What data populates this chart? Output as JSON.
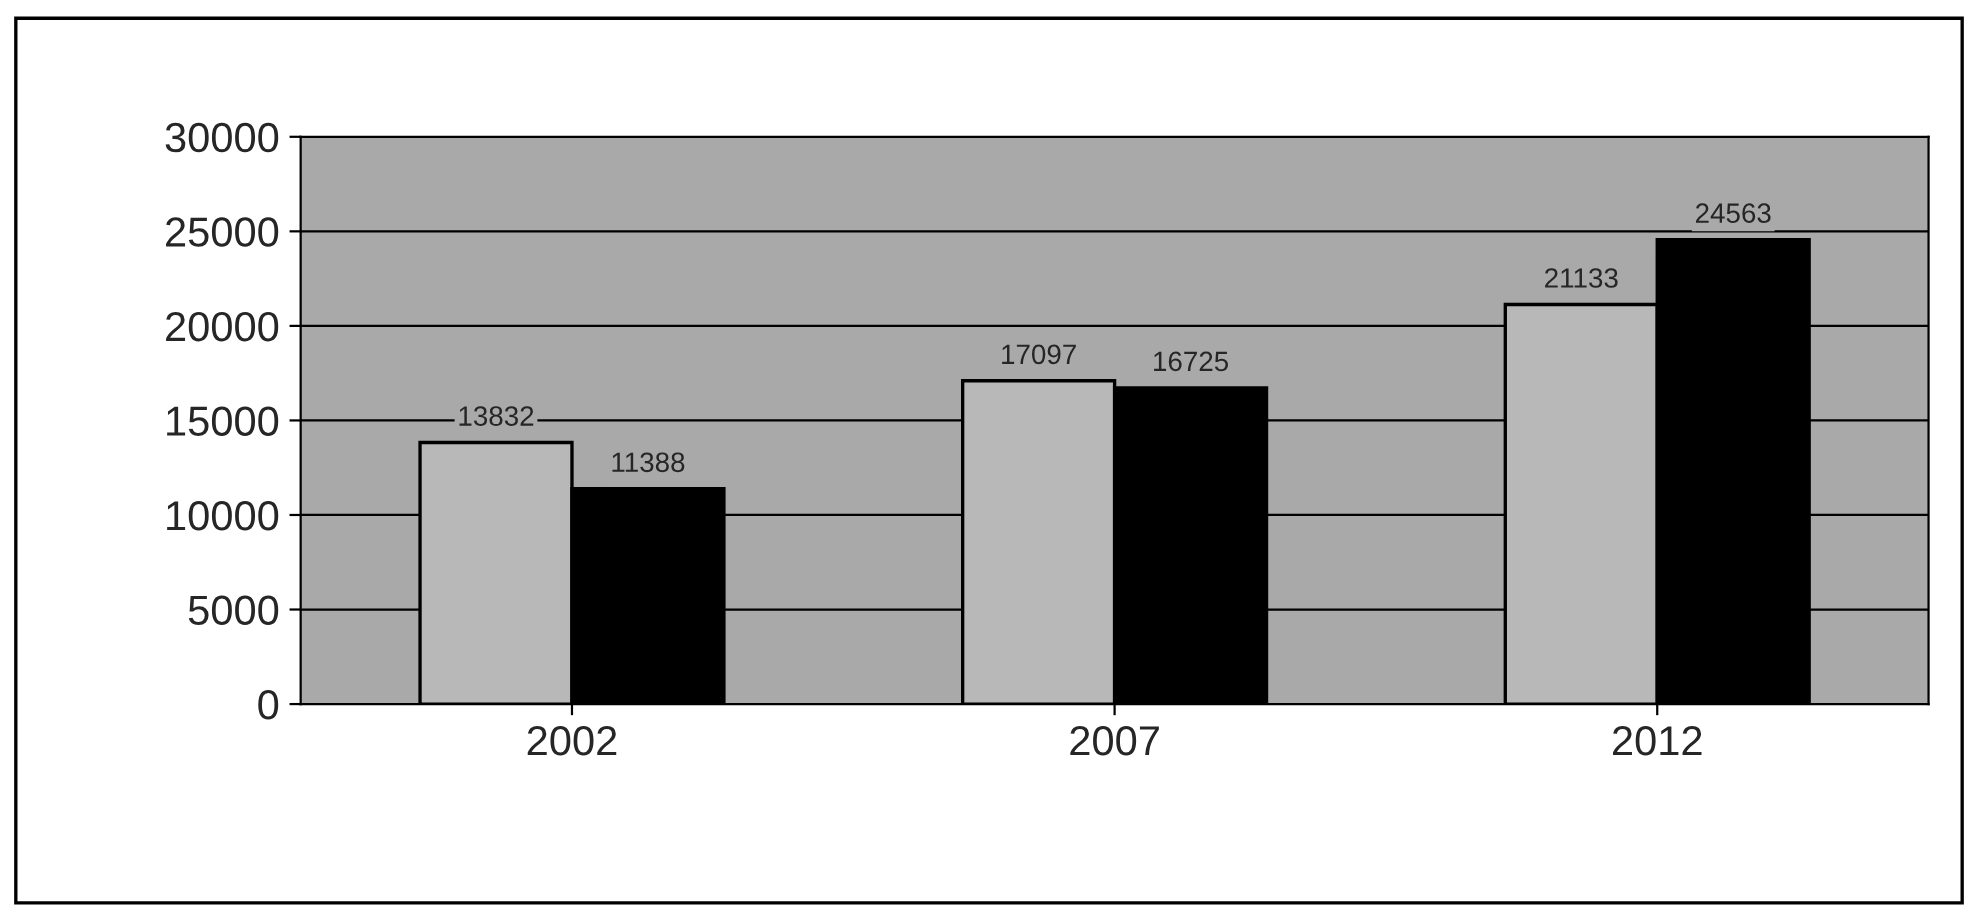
{
  "chart_data": {
    "type": "bar",
    "categories": [
      "2002",
      "2007",
      "2012"
    ],
    "series": [
      {
        "color": "#b8b8b8",
        "values": [
          13832,
          17097,
          21133
        ]
      },
      {
        "color": "#000000",
        "values": [
          11388,
          16725,
          24563
        ]
      }
    ],
    "ylim": [
      0,
      30000
    ],
    "yticks": [
      0,
      5000,
      10000,
      15000,
      20000,
      25000,
      30000
    ],
    "grid": "y",
    "data_labels": true
  }
}
